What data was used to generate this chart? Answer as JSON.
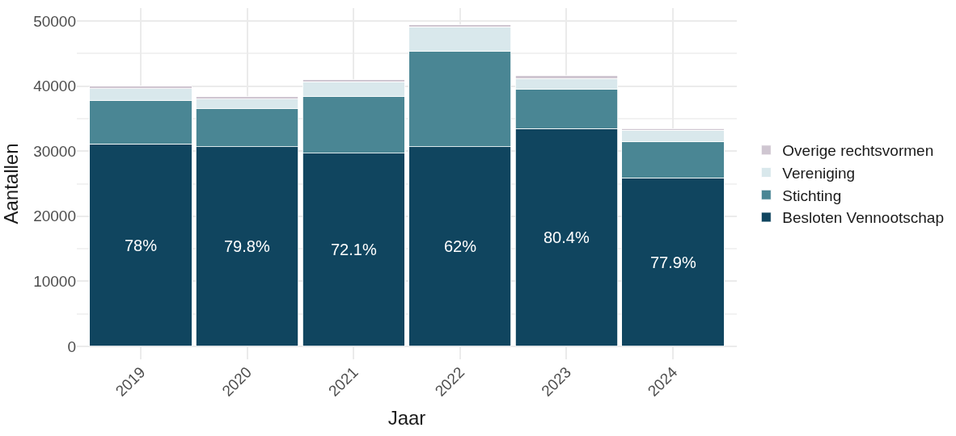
{
  "chart_data": {
    "type": "bar",
    "stacked": true,
    "xlabel": "Jaar",
    "ylabel": "Aantallen",
    "categories": [
      "2019",
      "2020",
      "2021",
      "2022",
      "2023",
      "2024"
    ],
    "series": [
      {
        "name": "Besloten Vennootschap",
        "color": "#10455f",
        "values": [
          31100,
          30700,
          29700,
          30700,
          33500,
          25900
        ]
      },
      {
        "name": "Stichting",
        "color": "#4a8694",
        "values": [
          6700,
          5800,
          8700,
          14600,
          6000,
          5600
        ]
      },
      {
        "name": "Vereniging",
        "color": "#d9e8ec",
        "values": [
          1800,
          1500,
          2300,
          3800,
          1700,
          1700
        ]
      },
      {
        "name": "Overige rechtsvormen",
        "color": "#cfc6d1",
        "values": [
          400,
          400,
          300,
          300,
          400,
          300
        ]
      }
    ],
    "annotations": [
      "78%",
      "79.8%",
      "72.1%",
      "62%",
      "80.4%",
      "77.9%"
    ],
    "ylim": [
      -2000,
      52000
    ],
    "yticks": [
      0,
      10000,
      20000,
      30000,
      40000,
      50000
    ],
    "grid": true,
    "legend": "right"
  }
}
